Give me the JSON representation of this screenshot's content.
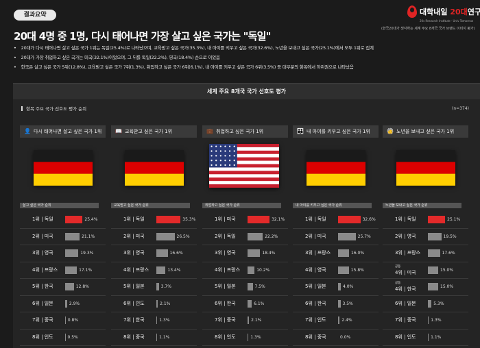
{
  "badge": "결과요약",
  "logo": {
    "name_prefix": "대학내일 ",
    "name_accent": "20대",
    "name_suffix": "연구소",
    "sub": "20s Research Institute · Univ Tomorrow"
  },
  "source": "(한국20대가 생각하는 세계 주요 8개국 국가 브랜드 이미지 평가)",
  "title": "20대 4명 중 1명, 다시 태어나면 가장 살고 싶은 국가는 \"독일\"",
  "bullets": [
    "20대가 다시 태어나면 살고 싶은 국가 1위는 독일(25.4%)로 나타났으며, 교육받고 싶은 국가(35.3%), 내 아이를 키우고 싶은 국가(32.6%), 노년을 보내고 싶은 국가(25.1%)에서 모두 1위로 집계",
    "20대가 가장 취업하고 싶은 국가는 미국(32.1%)이었으며, 그 뒤를 독일(22.2%), 영국(18.4%) 순으로 이었음",
    "한국은 살고 싶은 국가 5위(12.8%), 교육받고 싶은 국가 7위(1.3%), 취업하고 싶은 국가 6위(6.1%), 내 아이를 키우고 싶은 국가 6위(3.5%) 등 대부분의 항목에서 하위권으로 나타났음"
  ],
  "panel": {
    "title": "세계 주요 8개국 국가 선호도 평가",
    "subtitle": "항목 주요 국가 선호도 평가 순위",
    "n": "(n=374)"
  },
  "chart_data": [
    {
      "type": "bar",
      "title": "살고 싶은 국가 순위",
      "header": "다시 태어나면 살고 싶은 국가 1위",
      "icon": "person-icon",
      "flag": "germany",
      "ylim": [
        0,
        40
      ],
      "categories": [
        "1위 | 독일",
        "2위 | 미국",
        "3위 | 영국",
        "4위 | 프랑스",
        "5위 | 한국",
        "6위 | 일본",
        "7위 | 중국",
        "8위 | 인도"
      ],
      "values": [
        25.4,
        21.1,
        19.3,
        17.1,
        12.8,
        2.9,
        0.8,
        0.5
      ],
      "labels": [
        "25.4%",
        "21.1%",
        "19.3%",
        "17.1%",
        "12.8%",
        "2.9%",
        "0.8%",
        "0.5%"
      ]
    },
    {
      "type": "bar",
      "title": "교육받고 싶은 국가 순위",
      "header": "교육받고 싶은 국가 1위",
      "icon": "classroom-icon",
      "flag": "germany",
      "ylim": [
        0,
        40
      ],
      "categories": [
        "1위 | 독일",
        "2위 | 미국",
        "3위 | 영국",
        "4위 | 프랑스",
        "5위 | 일본",
        "6위 | 인도",
        "7위 | 한국",
        "8위 | 중국"
      ],
      "values": [
        35.3,
        26.5,
        16.6,
        13.4,
        3.7,
        2.1,
        1.3,
        1.1
      ],
      "labels": [
        "35.3%",
        "26.5%",
        "16.6%",
        "13.4%",
        "3.7%",
        "2.1%",
        "1.3%",
        "1.1%"
      ]
    },
    {
      "type": "bar",
      "title": "취업하고 싶은 국가 순위",
      "header": "취업하고 싶은 국가 1위",
      "icon": "briefcase-icon",
      "flag": "usa",
      "ylim": [
        0,
        40
      ],
      "categories": [
        "1위 | 미국",
        "2위 | 독일",
        "3위 | 영국",
        "4위 | 프랑스",
        "5위 | 일본",
        "6위 | 한국",
        "7위 | 중국",
        "8위 | 인도"
      ],
      "values": [
        32.1,
        22.2,
        18.4,
        10.2,
        7.5,
        6.1,
        2.1,
        1.3
      ],
      "labels": [
        "32.1%",
        "22.2%",
        "18.4%",
        "10.2%",
        "7.5%",
        "6.1%",
        "2.1%",
        "1.3%"
      ]
    },
    {
      "type": "bar",
      "title": "내 아이를 키우고 싶은 국가 순위",
      "header": "내 아이를 키우고 싶은 국가 1위",
      "icon": "parent-child-icon",
      "flag": "germany",
      "ylim": [
        0,
        40
      ],
      "categories": [
        "1위 | 독일",
        "2위 | 미국",
        "3위 | 프랑스",
        "4위 | 영국",
        "5위 | 일본",
        "6위 | 한국",
        "7위 | 인도",
        "8위 | 중국"
      ],
      "values": [
        32.6,
        25.7,
        16.0,
        15.8,
        4.0,
        3.5,
        2.4,
        0.0
      ],
      "labels": [
        "32.6%",
        "25.7%",
        "16.0%",
        "15.8%",
        "4.0%",
        "3.5%",
        "2.4%",
        "0.0%"
      ]
    },
    {
      "type": "bar",
      "title": "노년을 보내고 싶은 국가 순위",
      "header": "노년을 보내고 싶은 국가 1위",
      "icon": "elderly-icon",
      "flag": "germany",
      "ylim": [
        0,
        40
      ],
      "categories": [
        "1위 | 독일",
        "2위 | 영국",
        "3위 | 프랑스",
        "4위 | 미국",
        "4위 | 한국",
        "6위 | 일본",
        "7위 | 중국",
        "8위 | 인도"
      ],
      "values": [
        25.1,
        19.5,
        17.6,
        15.0,
        15.0,
        5.3,
        1.3,
        1.1
      ],
      "labels": [
        "25.1%",
        "19.5%",
        "17.6%",
        "15.0%",
        "15.0%",
        "5.3%",
        "1.3%",
        "1.1%"
      ],
      "tie_note": "공동"
    }
  ],
  "colors": {
    "highlight": "#e32a2a",
    "bar": "#8a8a8a",
    "background": "#1b1b1b",
    "panel": "#242424"
  }
}
